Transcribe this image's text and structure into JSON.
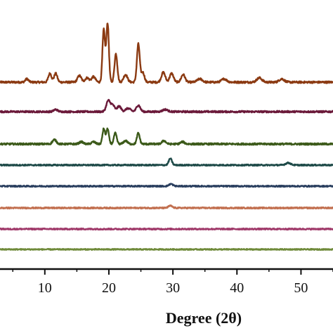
{
  "chart_data": {
    "type": "line",
    "title": "",
    "xlabel": "Degree (2θ)",
    "ylabel": "",
    "xlim": [
      3,
      55
    ],
    "xticks": [
      10,
      20,
      30,
      40,
      50
    ],
    "grid": false,
    "legend": "none",
    "series": [
      {
        "color": "#8b3a12",
        "baseline": 0,
        "noise": 0.9,
        "peaks": [
          [
            7.2,
            3,
            0.25
          ],
          [
            10.8,
            8,
            0.25
          ],
          [
            11.7,
            8,
            0.25
          ],
          [
            15.4,
            6,
            0.3
          ],
          [
            16.6,
            4,
            0.3
          ],
          [
            17.6,
            5,
            0.3
          ],
          [
            19.2,
            48,
            0.2
          ],
          [
            19.8,
            54,
            0.2
          ],
          [
            21.1,
            26,
            0.22
          ],
          [
            22.6,
            7,
            0.3
          ],
          [
            24.6,
            35,
            0.22
          ],
          [
            25.3,
            9,
            0.25
          ],
          [
            28.5,
            9,
            0.3
          ],
          [
            29.8,
            8,
            0.3
          ],
          [
            31.6,
            7,
            0.3
          ],
          [
            34.2,
            3,
            0.4
          ],
          [
            38.0,
            3,
            0.4
          ],
          [
            43.5,
            4,
            0.4
          ],
          [
            47.0,
            3,
            0.4
          ]
        ]
      },
      {
        "color": "#6b1a3a",
        "baseline": 0,
        "noise": 0.8,
        "peaks": [
          [
            11.7,
            2,
            0.3
          ],
          [
            19.9,
            10,
            0.3
          ],
          [
            20.6,
            6,
            0.3
          ],
          [
            21.6,
            5,
            0.3
          ],
          [
            23.0,
            3,
            0.4
          ],
          [
            24.6,
            6,
            0.3
          ],
          [
            28.8,
            2,
            0.4
          ]
        ]
      },
      {
        "color": "#3c5a1a",
        "baseline": 0,
        "noise": 0.8,
        "peaks": [
          [
            11.5,
            4,
            0.3
          ],
          [
            15.7,
            2,
            0.3
          ],
          [
            17.6,
            2,
            0.3
          ],
          [
            19.2,
            14,
            0.2
          ],
          [
            19.8,
            14,
            0.2
          ],
          [
            21.0,
            10,
            0.22
          ],
          [
            22.6,
            3,
            0.3
          ],
          [
            24.6,
            10,
            0.22
          ],
          [
            28.6,
            3,
            0.3
          ],
          [
            31.5,
            2,
            0.3
          ]
        ]
      },
      {
        "color": "#1e4a48",
        "baseline": 0,
        "noise": 0.6,
        "peaks": [
          [
            29.6,
            6,
            0.25
          ],
          [
            48.0,
            2,
            0.4
          ]
        ]
      },
      {
        "color": "#2a3f5f",
        "baseline": 0,
        "noise": 0.6,
        "peaks": [
          [
            29.7,
            2,
            0.3
          ]
        ]
      },
      {
        "color": "#c27050",
        "baseline": 0,
        "noise": 0.6,
        "peaks": [
          [
            29.6,
            2,
            0.3
          ]
        ]
      },
      {
        "color": "#a03a6a",
        "baseline": 0,
        "noise": 0.6,
        "peaks": []
      },
      {
        "color": "#6f8a3a",
        "baseline": 0,
        "noise": 0.5,
        "peaks": []
      }
    ]
  }
}
